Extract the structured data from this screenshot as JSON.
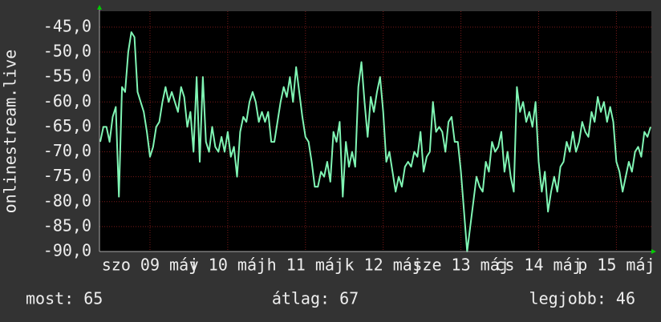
{
  "chart_data": {
    "type": "line",
    "y_label": "onlinestream.live",
    "color": "#80f5b4",
    "grid": true,
    "xlim": [
      8.35,
      15.45
    ],
    "ylim": [
      -90,
      -41.8
    ],
    "xticks": [
      {
        "value": 9,
        "label": "szo 09 máj"
      },
      {
        "value": 10,
        "label": "v 10 máj"
      },
      {
        "value": 11,
        "label": "h 11 máj"
      },
      {
        "value": 12,
        "label": "k 12 máj"
      },
      {
        "value": 13,
        "label": "sze 13 máj"
      },
      {
        "value": 14,
        "label": "cs 14 máj"
      },
      {
        "value": 15,
        "label": "p 15 máj"
      }
    ],
    "yticks": [
      {
        "value": -90,
        "label": "-90,0"
      },
      {
        "value": -85,
        "label": "-85,0"
      },
      {
        "value": -80,
        "label": "-80,0"
      },
      {
        "value": -75,
        "label": "-75,0"
      },
      {
        "value": -70,
        "label": "-70,0"
      },
      {
        "value": -65,
        "label": "-65,0"
      },
      {
        "value": -60,
        "label": "-60,0"
      },
      {
        "value": -55,
        "label": "-55,0"
      },
      {
        "value": -50,
        "label": "-50,0"
      },
      {
        "value": -45,
        "label": "-45,0"
      }
    ],
    "x": [
      8.36,
      8.4,
      8.44,
      8.48,
      8.52,
      8.56,
      8.6,
      8.64,
      8.68,
      8.72,
      8.76,
      8.8,
      8.84,
      8.88,
      8.92,
      8.96,
      9,
      9.04,
      9.08,
      9.12,
      9.16,
      9.2,
      9.24,
      9.28,
      9.32,
      9.36,
      9.4,
      9.44,
      9.48,
      9.52,
      9.56,
      9.6,
      9.64,
      9.68,
      9.72,
      9.76,
      9.8,
      9.84,
      9.88,
      9.92,
      9.96,
      10,
      10.04,
      10.08,
      10.12,
      10.16,
      10.2,
      10.24,
      10.28,
      10.32,
      10.36,
      10.4,
      10.44,
      10.48,
      10.52,
      10.56,
      10.6,
      10.64,
      10.68,
      10.72,
      10.76,
      10.8,
      10.84,
      10.88,
      10.92,
      10.96,
      11,
      11.04,
      11.08,
      11.12,
      11.16,
      11.2,
      11.24,
      11.28,
      11.32,
      11.36,
      11.4,
      11.44,
      11.48,
      11.52,
      11.56,
      11.6,
      11.64,
      11.68,
      11.72,
      11.76,
      11.8,
      11.84,
      11.88,
      11.92,
      11.96,
      12,
      12.04,
      12.08,
      12.12,
      12.16,
      12.2,
      12.24,
      12.28,
      12.32,
      12.36,
      12.4,
      12.44,
      12.48,
      12.52,
      12.56,
      12.6,
      12.64,
      12.68,
      12.72,
      12.76,
      12.8,
      12.84,
      12.88,
      12.92,
      12.96,
      13,
      13.04,
      13.08,
      13.12,
      13.16,
      13.2,
      13.24,
      13.28,
      13.32,
      13.36,
      13.4,
      13.44,
      13.48,
      13.52,
      13.56,
      13.6,
      13.64,
      13.68,
      13.72,
      13.76,
      13.8,
      13.84,
      13.88,
      13.92,
      13.96,
      14,
      14.04,
      14.08,
      14.12,
      14.16,
      14.2,
      14.24,
      14.28,
      14.32,
      14.36,
      14.4,
      14.44,
      14.48,
      14.52,
      14.56,
      14.6,
      14.64,
      14.68,
      14.72,
      14.76,
      14.8,
      14.84,
      14.88,
      14.92,
      14.96,
      15,
      15.04,
      15.08,
      15.12,
      15.16,
      15.2,
      15.24,
      15.28,
      15.32,
      15.36,
      15.4,
      15.44
    ],
    "values": [
      -68,
      -65,
      -65,
      -68,
      -63,
      -61,
      -79,
      -57,
      -58,
      -50,
      -46,
      -47,
      -58,
      -60,
      -62,
      -66,
      -71,
      -69,
      -65,
      -64,
      -60,
      -57,
      -60,
      -58,
      -60,
      -62,
      -57,
      -59,
      -65,
      -62,
      -70,
      -55,
      -72,
      -55,
      -68,
      -70,
      -65,
      -69,
      -70,
      -67,
      -70,
      -66,
      -71,
      -69,
      -75,
      -66,
      -63,
      -64,
      -60,
      -58,
      -60,
      -64,
      -62,
      -64,
      -62,
      -68,
      -68,
      -64,
      -60,
      -57,
      -59,
      -55,
      -60,
      -53,
      -58,
      -63,
      -67,
      -68,
      -72,
      -77,
      -77,
      -74,
      -75,
      -72,
      -76,
      -66,
      -68,
      -64,
      -79,
      -68,
      -73,
      -70,
      -73,
      -57,
      -52,
      -60,
      -67,
      -59,
      -62,
      -58,
      -55,
      -62,
      -72,
      -70,
      -74,
      -78,
      -75,
      -77,
      -73,
      -72,
      -73,
      -70,
      -71,
      -66,
      -74,
      -71,
      -70,
      -60,
      -66,
      -65,
      -66,
      -70,
      -64,
      -63,
      -68,
      -68,
      -74,
      -82,
      -90,
      -85,
      -80,
      -75,
      -77,
      -78,
      -72,
      -74,
      -68,
      -70,
      -69,
      -66,
      -74,
      -70,
      -75,
      -78,
      -57,
      -62,
      -60,
      -64,
      -62,
      -65,
      -60,
      -72,
      -78,
      -74,
      -82,
      -78,
      -75,
      -78,
      -73,
      -72,
      -68,
      -70,
      -66,
      -70,
      -68,
      -64,
      -66,
      -67,
      -62,
      -64,
      -59,
      -62,
      -60,
      -64,
      -61,
      -64,
      -72,
      -74,
      -78,
      -75,
      -72,
      -74,
      -70,
      -69,
      -71,
      -66,
      -67,
      -65
    ],
    "stats": [
      "most: 65",
      "átlag: 67",
      "legjobb: 46"
    ]
  }
}
